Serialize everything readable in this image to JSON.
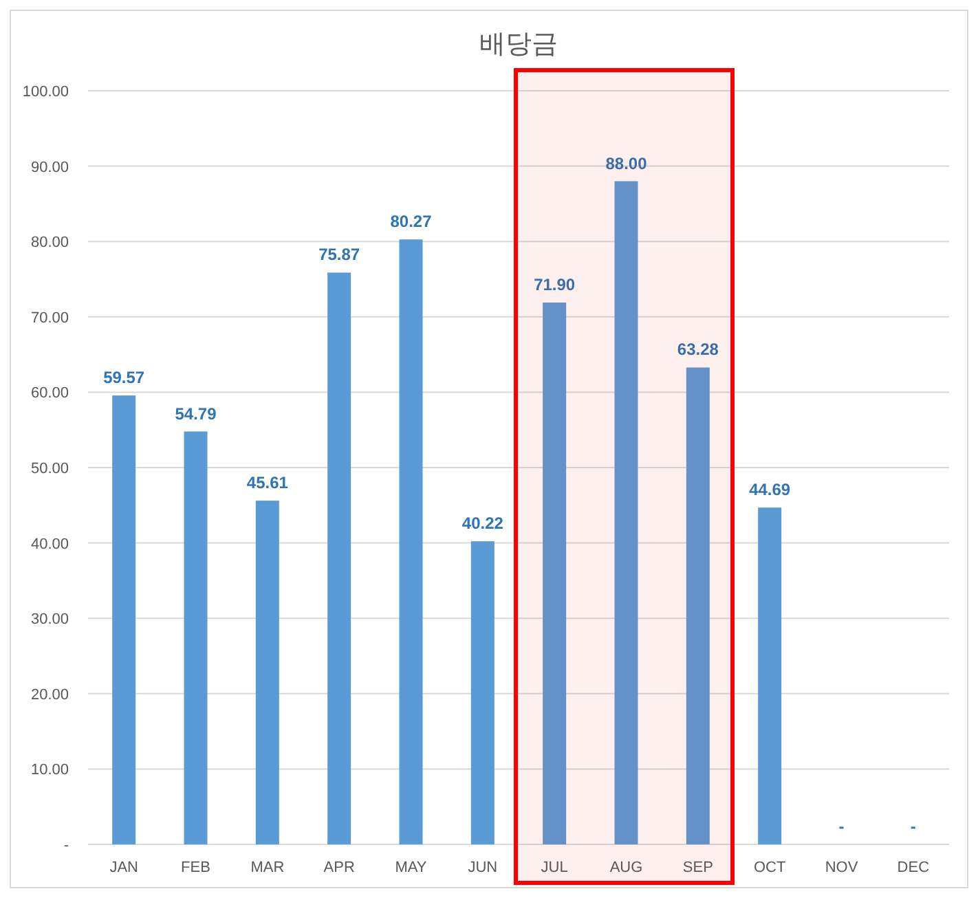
{
  "chart_data": {
    "type": "bar",
    "title": "배당금",
    "categories": [
      "JAN",
      "FEB",
      "MAR",
      "APR",
      "MAY",
      "JUN",
      "JUL",
      "AUG",
      "SEP",
      "OCT",
      "NOV",
      "DEC"
    ],
    "series": [
      {
        "color": "#5b9bd5",
        "values": [
          59.57,
          54.79,
          45.61,
          75.87,
          80.27,
          40.22,
          71.9,
          88.0,
          63.28,
          44.69,
          0,
          0
        ],
        "value_labels": [
          "59.57",
          "54.79",
          "45.61",
          "75.87",
          "80.27",
          "40.22",
          "71.90",
          "88.00",
          "63.28",
          "44.69",
          "-",
          "-"
        ]
      }
    ],
    "ylim": [
      0,
      100
    ],
    "yticks": [
      {
        "value": 0,
        "label": "-"
      },
      {
        "value": 10,
        "label": "10.00"
      },
      {
        "value": 20,
        "label": "20.00"
      },
      {
        "value": 30,
        "label": "30.00"
      },
      {
        "value": 40,
        "label": "40.00"
      },
      {
        "value": 50,
        "label": "50.00"
      },
      {
        "value": 60,
        "label": "60.00"
      },
      {
        "value": 70,
        "label": "70.00"
      },
      {
        "value": 80,
        "label": "80.00"
      },
      {
        "value": 90,
        "label": "90.00"
      },
      {
        "value": 100,
        "label": "100.00"
      }
    ],
    "grid": "y",
    "bands": [
      {
        "axis": "x",
        "from": "JUL",
        "to": "SEP",
        "color": "#ff0000"
      }
    ]
  }
}
